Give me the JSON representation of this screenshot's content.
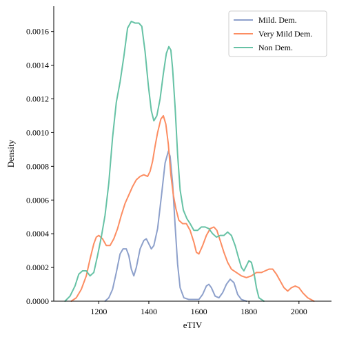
{
  "chart_data": {
    "type": "line",
    "title": "",
    "xlabel": "eTIV",
    "ylabel": "Density",
    "xlim": [
      1020,
      2130
    ],
    "ylim": [
      0,
      0.00175
    ],
    "xticks": [
      {
        "value": 1200,
        "label": "1200"
      },
      {
        "value": 1400,
        "label": "1400"
      },
      {
        "value": 1600,
        "label": "1600"
      },
      {
        "value": 1800,
        "label": "1800"
      },
      {
        "value": 2000,
        "label": "2000"
      }
    ],
    "yticks": [
      {
        "value": 0,
        "label": "0.0000"
      },
      {
        "value": 0.0002,
        "label": "0.0002"
      },
      {
        "value": 0.0004,
        "label": "0.0004"
      },
      {
        "value": 0.0006,
        "label": "0.0006"
      },
      {
        "value": 0.0008,
        "label": "0.0008"
      },
      {
        "value": 0.001,
        "label": "0.0010"
      },
      {
        "value": 0.0012,
        "label": "0.0012"
      },
      {
        "value": 0.0014,
        "label": "0.0014"
      },
      {
        "value": 0.0016,
        "label": "0.0016"
      }
    ],
    "grid": false,
    "legend": "top-right",
    "series": [
      {
        "name": "Mild. Dem.",
        "color": "#8da0cb",
        "points": [
          [
            1225,
            0
          ],
          [
            1240,
            2e-05
          ],
          [
            1255,
            7e-05
          ],
          [
            1270,
            0.00017
          ],
          [
            1285,
            0.00028
          ],
          [
            1297,
            0.00031
          ],
          [
            1310,
            0.00031
          ],
          [
            1320,
            0.00027
          ],
          [
            1330,
            0.00019
          ],
          [
            1340,
            0.00015
          ],
          [
            1350,
            0.0002
          ],
          [
            1365,
            0.00031
          ],
          [
            1380,
            0.00036
          ],
          [
            1390,
            0.00037
          ],
          [
            1400,
            0.00034
          ],
          [
            1410,
            0.00031
          ],
          [
            1420,
            0.00033
          ],
          [
            1435,
            0.00043
          ],
          [
            1450,
            0.00062
          ],
          [
            1465,
            0.00082
          ],
          [
            1478,
            0.00089
          ],
          [
            1485,
            0.00086
          ],
          [
            1495,
            0.0007
          ],
          [
            1505,
            0.00045
          ],
          [
            1515,
            0.00022
          ],
          [
            1525,
            8e-05
          ],
          [
            1540,
            2e-05
          ],
          [
            1560,
            1e-05
          ],
          [
            1580,
            1e-05
          ],
          [
            1600,
            1e-05
          ],
          [
            1615,
            4e-05
          ],
          [
            1630,
            9e-05
          ],
          [
            1640,
            0.0001
          ],
          [
            1650,
            8e-05
          ],
          [
            1665,
            3e-05
          ],
          [
            1680,
            2e-05
          ],
          [
            1695,
            5e-05
          ],
          [
            1710,
            0.0001
          ],
          [
            1725,
            0.00013
          ],
          [
            1740,
            0.00011
          ],
          [
            1755,
            4e-05
          ],
          [
            1770,
            1e-05
          ],
          [
            1790,
            0
          ]
        ]
      },
      {
        "name": "Very Mild Dem.",
        "color": "#fc8d62",
        "points": [
          [
            1090,
            0
          ],
          [
            1110,
            2e-05
          ],
          [
            1130,
            7e-05
          ],
          [
            1150,
            0.00015
          ],
          [
            1165,
            0.00025
          ],
          [
            1180,
            0.00034
          ],
          [
            1190,
            0.00038
          ],
          [
            1200,
            0.00039
          ],
          [
            1215,
            0.00037
          ],
          [
            1230,
            0.00033
          ],
          [
            1245,
            0.00033
          ],
          [
            1260,
            0.00037
          ],
          [
            1275,
            0.00043
          ],
          [
            1290,
            0.00051
          ],
          [
            1305,
            0.00058
          ],
          [
            1320,
            0.00063
          ],
          [
            1335,
            0.00068
          ],
          [
            1350,
            0.00072
          ],
          [
            1365,
            0.00074
          ],
          [
            1380,
            0.00075
          ],
          [
            1395,
            0.00074
          ],
          [
            1405,
            0.00077
          ],
          [
            1415,
            0.00083
          ],
          [
            1425,
            0.00092
          ],
          [
            1435,
            0.001
          ],
          [
            1448,
            0.00108
          ],
          [
            1458,
            0.0011
          ],
          [
            1468,
            0.00105
          ],
          [
            1478,
            0.00093
          ],
          [
            1488,
            0.00075
          ],
          [
            1498,
            0.00063
          ],
          [
            1508,
            0.00055
          ],
          [
            1520,
            0.00048
          ],
          [
            1535,
            0.00046
          ],
          [
            1550,
            0.00046
          ],
          [
            1565,
            0.00042
          ],
          [
            1580,
            0.00035
          ],
          [
            1590,
            0.00029
          ],
          [
            1600,
            0.00028
          ],
          [
            1615,
            0.00033
          ],
          [
            1630,
            0.00039
          ],
          [
            1645,
            0.00043
          ],
          [
            1660,
            0.00044
          ],
          [
            1672,
            0.00042
          ],
          [
            1685,
            0.00036
          ],
          [
            1700,
            0.00029
          ],
          [
            1715,
            0.00023
          ],
          [
            1730,
            0.00019
          ],
          [
            1750,
            0.00017
          ],
          [
            1770,
            0.00015
          ],
          [
            1790,
            0.00014
          ],
          [
            1810,
            0.00015
          ],
          [
            1830,
            0.00017
          ],
          [
            1850,
            0.00017
          ],
          [
            1865,
            0.00018
          ],
          [
            1880,
            0.00019
          ],
          [
            1895,
            0.00019
          ],
          [
            1910,
            0.00016
          ],
          [
            1925,
            0.00012
          ],
          [
            1940,
            8e-05
          ],
          [
            1955,
            6e-05
          ],
          [
            1970,
            8e-05
          ],
          [
            1985,
            9e-05
          ],
          [
            2000,
            8e-05
          ],
          [
            2015,
            5e-05
          ],
          [
            2035,
            2e-05
          ],
          [
            2060,
            0
          ]
        ]
      },
      {
        "name": "Non Dem.",
        "color": "#66c2a5",
        "points": [
          [
            1065,
            0
          ],
          [
            1085,
            3e-05
          ],
          [
            1105,
            9e-05
          ],
          [
            1120,
            0.00016
          ],
          [
            1135,
            0.00018
          ],
          [
            1150,
            0.00018
          ],
          [
            1165,
            0.00015
          ],
          [
            1180,
            0.00017
          ],
          [
            1195,
            0.00027
          ],
          [
            1210,
            0.00038
          ],
          [
            1225,
            0.00051
          ],
          [
            1240,
            0.0007
          ],
          [
            1255,
            0.00097
          ],
          [
            1270,
            0.00118
          ],
          [
            1285,
            0.0013
          ],
          [
            1300,
            0.00145
          ],
          [
            1315,
            0.00162
          ],
          [
            1330,
            0.00166
          ],
          [
            1345,
            0.00165
          ],
          [
            1360,
            0.00165
          ],
          [
            1372,
            0.00163
          ],
          [
            1385,
            0.00148
          ],
          [
            1398,
            0.00128
          ],
          [
            1410,
            0.00113
          ],
          [
            1420,
            0.00107
          ],
          [
            1432,
            0.0011
          ],
          [
            1445,
            0.0012
          ],
          [
            1458,
            0.00135
          ],
          [
            1470,
            0.00147
          ],
          [
            1480,
            0.00151
          ],
          [
            1488,
            0.00149
          ],
          [
            1495,
            0.00138
          ],
          [
            1505,
            0.00115
          ],
          [
            1515,
            0.00087
          ],
          [
            1525,
            0.00066
          ],
          [
            1538,
            0.00054
          ],
          [
            1552,
            0.00049
          ],
          [
            1565,
            0.00046
          ],
          [
            1580,
            0.00042
          ],
          [
            1595,
            0.00042
          ],
          [
            1610,
            0.00044
          ],
          [
            1625,
            0.00044
          ],
          [
            1640,
            0.00043
          ],
          [
            1655,
            0.0004
          ],
          [
            1670,
            0.00038
          ],
          [
            1685,
            0.00039
          ],
          [
            1700,
            0.00039
          ],
          [
            1715,
            0.00041
          ],
          [
            1730,
            0.00039
          ],
          [
            1745,
            0.00033
          ],
          [
            1758,
            0.00026
          ],
          [
            1770,
            0.0002
          ],
          [
            1780,
            0.00018
          ],
          [
            1790,
            0.00021
          ],
          [
            1800,
            0.00024
          ],
          [
            1810,
            0.00023
          ],
          [
            1820,
            0.00017
          ],
          [
            1830,
            8e-05
          ],
          [
            1840,
            2e-05
          ],
          [
            1860,
            0
          ]
        ]
      }
    ]
  }
}
